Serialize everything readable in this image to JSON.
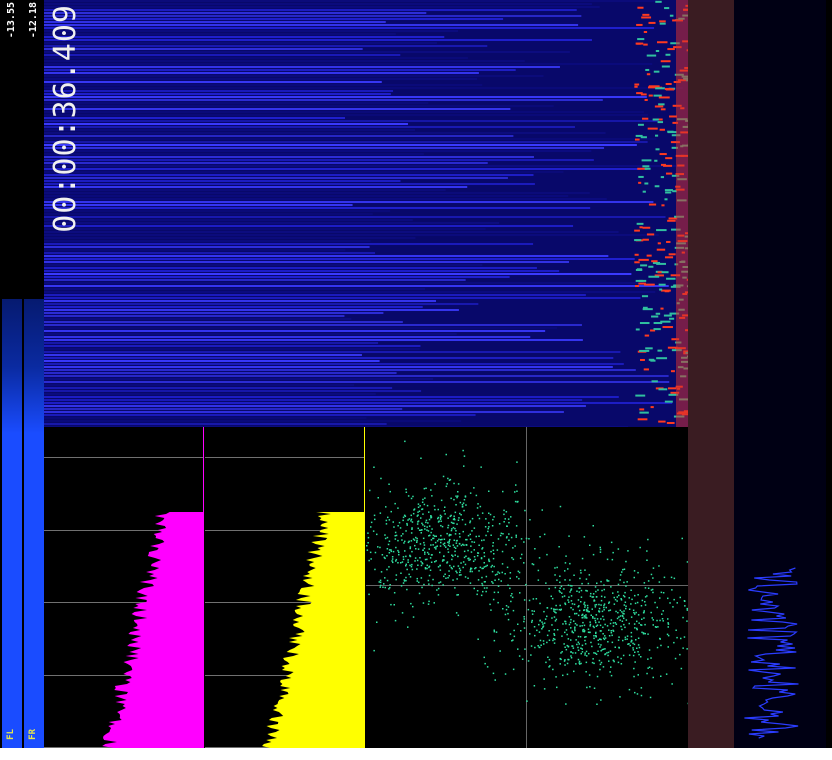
{
  "meters": {
    "left": {
      "label": "FL",
      "db": "-13.55",
      "level": 0.6
    },
    "right": {
      "label": "FR",
      "db": "-12.18",
      "level": 0.6
    }
  },
  "timestamp": "00:00:36.409",
  "colors": {
    "magenta_hist": "#ff00ff",
    "yellow_hist": "#ffff00",
    "scope_points": "#2fe0a0",
    "spectrogram_bg": "#0a0a6a",
    "meter_blue": "#1a4cff"
  }
}
